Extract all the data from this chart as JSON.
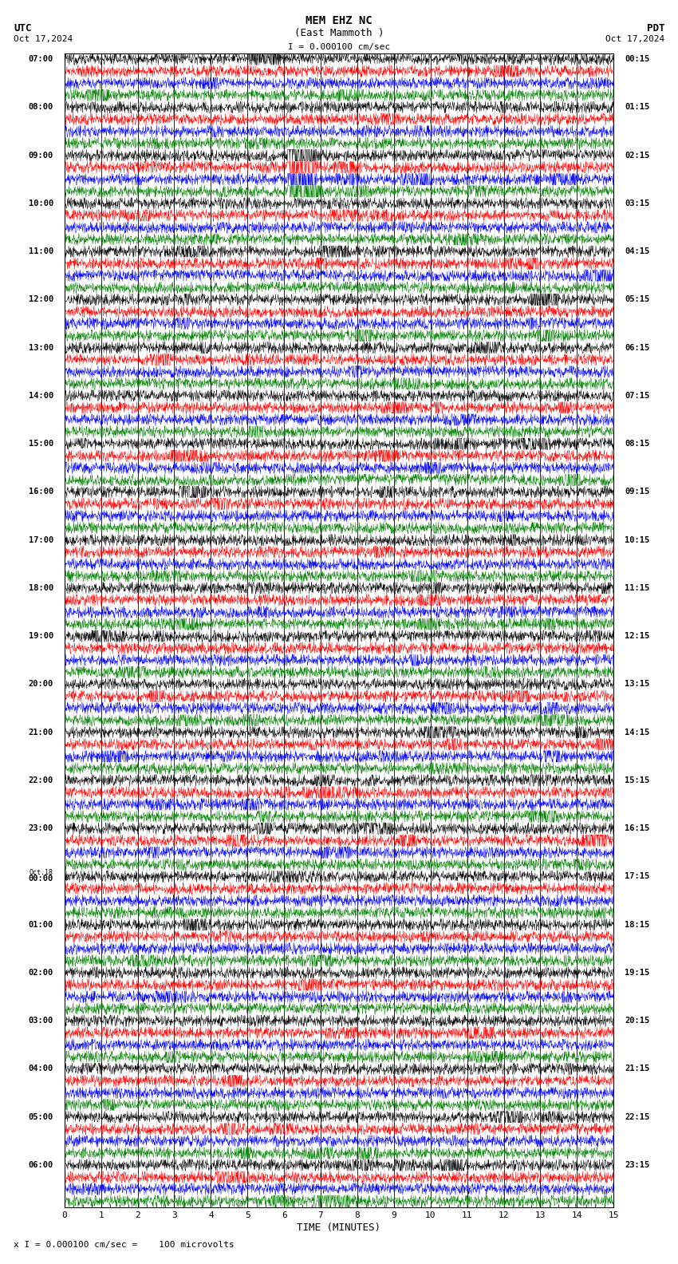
{
  "title_line1": "MEM EHZ NC",
  "title_line2": "(East Mammoth )",
  "scale_label": "I = 0.000100 cm/sec",
  "utc_label": "UTC",
  "utc_date": "Oct 17,2024",
  "pdt_label": "PDT",
  "pdt_date": "Oct 17,2024",
  "xlabel": "TIME (MINUTES)",
  "bottom_label": "x I = 0.000100 cm/sec =    100 microvolts",
  "background_color": "#ffffff",
  "trace_colors": [
    "black",
    "red",
    "blue",
    "green"
  ],
  "n_traces": 96,
  "noise_scale": 0.25,
  "seed": 12345,
  "utc_hour_labels": [
    "07:00",
    "08:00",
    "09:00",
    "10:00",
    "11:00",
    "12:00",
    "13:00",
    "14:00",
    "15:00",
    "16:00",
    "17:00",
    "18:00",
    "19:00",
    "20:00",
    "21:00",
    "22:00",
    "23:00",
    "Oct.18\n00:00",
    "01:00",
    "02:00",
    "03:00",
    "04:00",
    "05:00",
    "06:00"
  ],
  "pdt_hour_labels": [
    "00:15",
    "01:15",
    "02:15",
    "03:15",
    "04:15",
    "05:15",
    "06:15",
    "07:15",
    "08:15",
    "09:15",
    "10:15",
    "11:15",
    "12:15",
    "13:15",
    "14:15",
    "15:15",
    "16:15",
    "17:15",
    "18:15",
    "19:15",
    "20:15",
    "21:15",
    "22:15",
    "23:15"
  ],
  "n_hours": 24,
  "rows_per_hour": 4,
  "large_event_rows": [
    8,
    9,
    10,
    11
  ],
  "large_event_time": 6.1,
  "large_event_amp": 3.0
}
